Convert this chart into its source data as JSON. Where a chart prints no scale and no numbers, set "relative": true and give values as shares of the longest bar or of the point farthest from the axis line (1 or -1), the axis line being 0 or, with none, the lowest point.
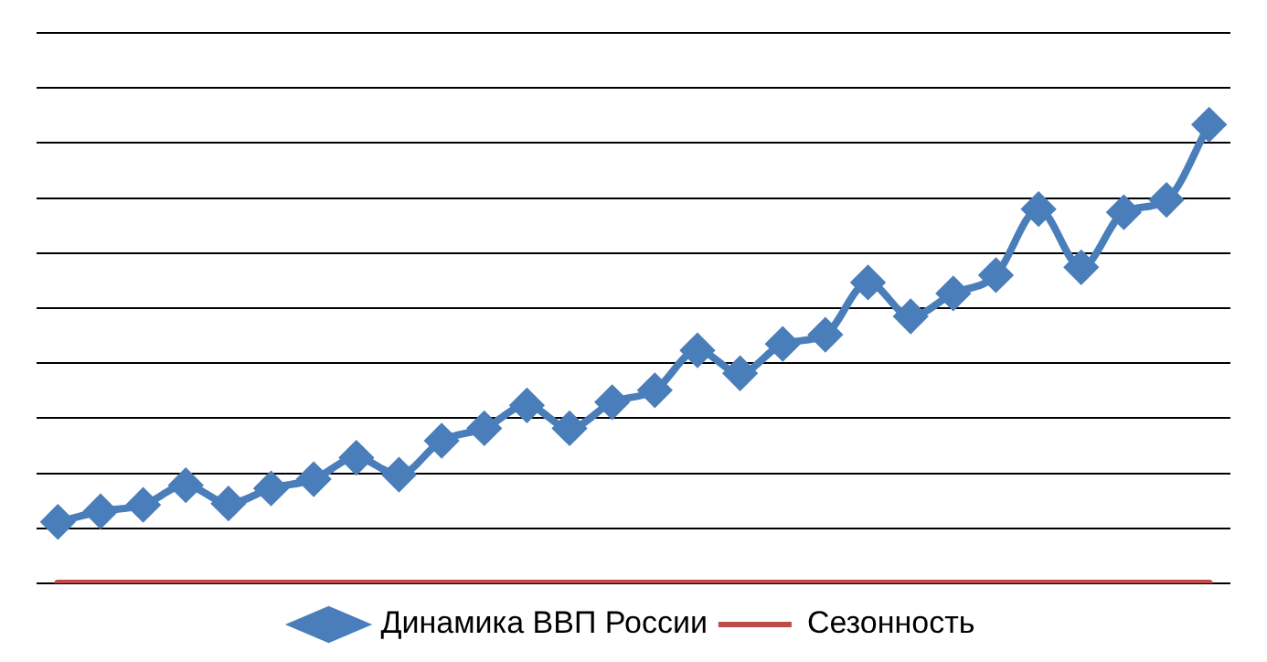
{
  "chart_data": {
    "type": "line",
    "relative": true,
    "grid": "y",
    "legend": "bottom",
    "line_style": "solid",
    "categories": [
      null,
      null,
      null,
      null,
      null,
      null,
      null,
      null,
      null,
      null,
      null,
      null,
      null,
      null,
      null,
      null,
      null,
      null,
      null,
      null,
      null,
      null,
      null,
      null,
      null,
      null,
      null,
      null
    ],
    "series": [
      {
        "name": "Динамика ВВП России",
        "color": "#4a7ebb",
        "marker": "diamond",
        "values": [
          0.134,
          0.157,
          0.171,
          0.214,
          0.174,
          0.207,
          0.227,
          0.274,
          0.237,
          0.311,
          0.338,
          0.388,
          0.338,
          0.395,
          0.421,
          0.508,
          0.458,
          0.522,
          0.542,
          0.656,
          0.582,
          0.632,
          0.672,
          0.816,
          0.689,
          0.809,
          0.836,
          1
        ]
      },
      {
        "name": "Сезонность",
        "color": "#be4b48",
        "marker": "none",
        "values": [
          0,
          0,
          0,
          0,
          0,
          0,
          0,
          0,
          0,
          0,
          0,
          0,
          0,
          0,
          0,
          0,
          0,
          0,
          0,
          0,
          0,
          0,
          0,
          0,
          0,
          0,
          0,
          0
        ]
      }
    ]
  }
}
